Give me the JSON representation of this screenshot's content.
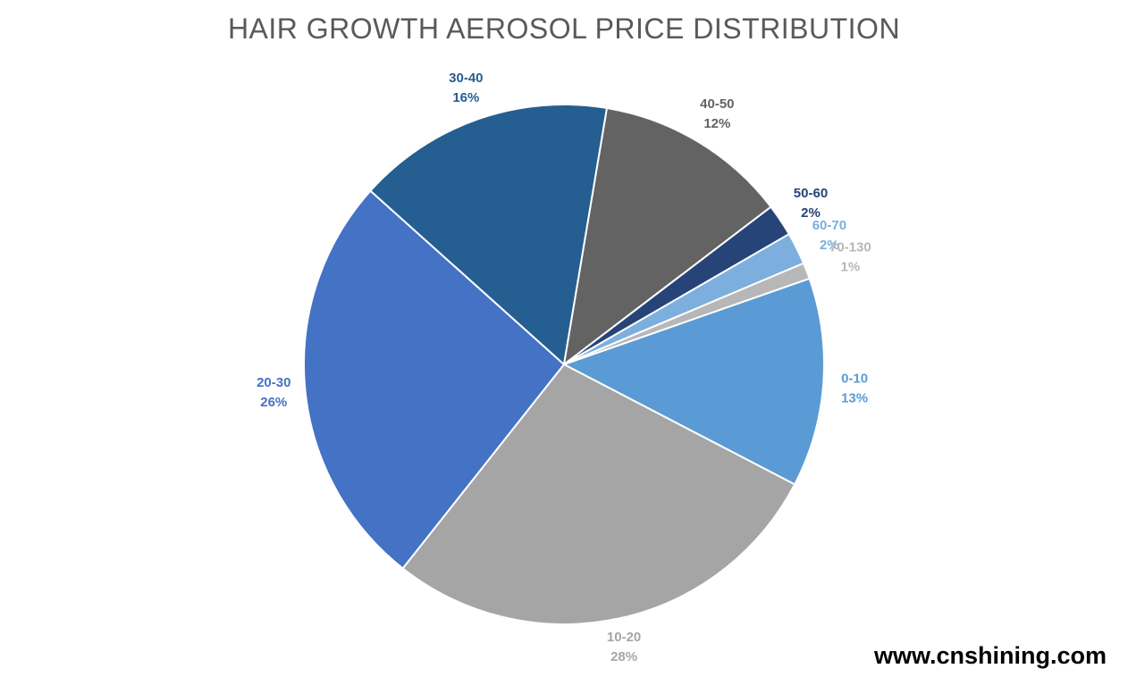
{
  "chart_data": {
    "type": "pie",
    "title": "HAIR GROWTH AEROSOL PRICE DISTRIBUTION",
    "slices": [
      {
        "label": "0-10",
        "value": 13,
        "pct_label": "13%",
        "color": "#5B9BD5",
        "label_color": "#5B9BD5"
      },
      {
        "label": "10-20",
        "value": 28,
        "pct_label": "28%",
        "color": "#A5A5A5",
        "label_color": "#A5A5A5"
      },
      {
        "label": "20-30",
        "value": 26,
        "pct_label": "26%",
        "color": "#4472C4",
        "label_color": "#4472C4"
      },
      {
        "label": "30-40",
        "value": 16,
        "pct_label": "16%",
        "color": "#255E91",
        "label_color": "#255E91"
      },
      {
        "label": "40-50",
        "value": 12,
        "pct_label": "12%",
        "color": "#636363",
        "label_color": "#636363"
      },
      {
        "label": "50-60",
        "value": 2,
        "pct_label": "2%",
        "color": "#264478",
        "label_color": "#264478"
      },
      {
        "label": "60-70",
        "value": 2,
        "pct_label": "2%",
        "color": "#7CAFDD",
        "label_color": "#7CAFDD"
      },
      {
        "label": "70-130",
        "value": 1,
        "pct_label": "1%",
        "color": "#B7B7B7",
        "label_color": "#B7B7B7"
      }
    ]
  },
  "watermark": "www.cnshining.com"
}
